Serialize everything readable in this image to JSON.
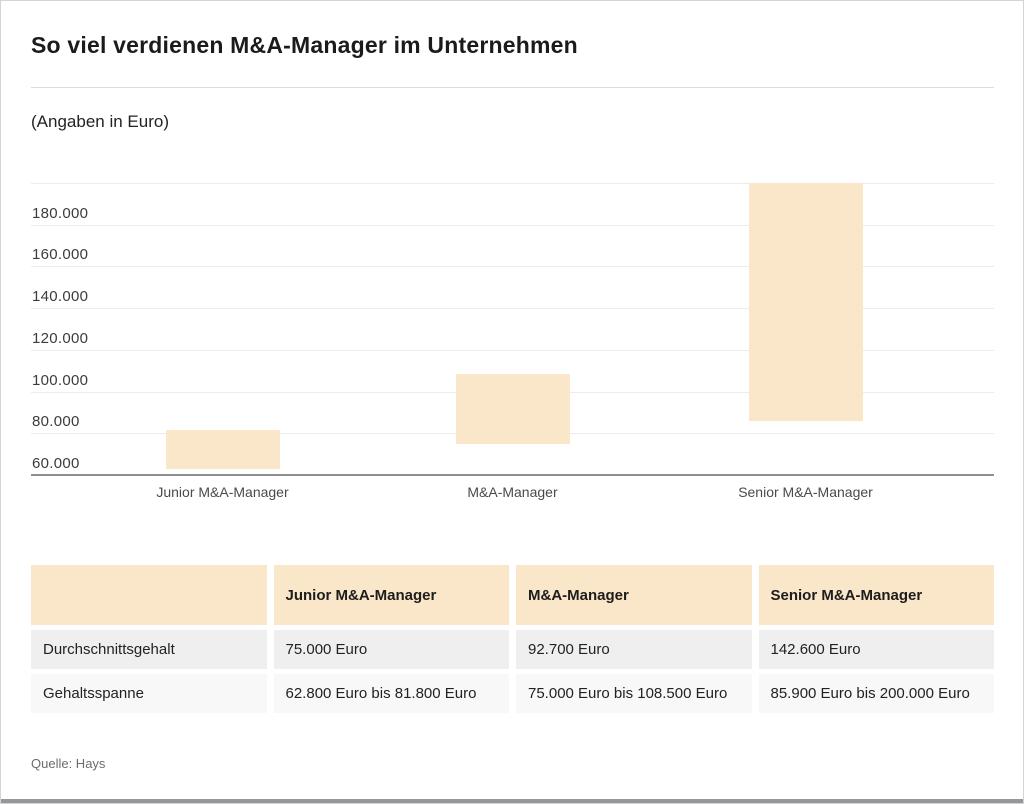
{
  "header": {
    "title": "So viel verdienen M&A-Manager im Unternehmen",
    "subtitle": "(Angaben in Euro)"
  },
  "chart_data": {
    "type": "bar",
    "subtype": "floating-range-columns",
    "title": "So viel verdienen M&A-Manager im Unternehmen",
    "xlabel": "",
    "ylabel": "Angaben in Euro",
    "categories": [
      "Junior M&A-Manager",
      "M&A-Manager",
      "Senior M&A-Manager"
    ],
    "series": [
      {
        "name": "Gehaltsspanne",
        "ranges": [
          {
            "low": 62800,
            "high": 81800
          },
          {
            "low": 75000,
            "high": 108500
          },
          {
            "low": 85900,
            "high": 200000
          }
        ]
      }
    ],
    "averages": [
      75000,
      92700,
      142600
    ],
    "ylim": [
      60000,
      200000
    ],
    "ytick_step": 20000,
    "ytick_labels": [
      "60.000",
      "80.000",
      "100.000",
      "120.000",
      "140.000",
      "160.000",
      "180.000"
    ],
    "grid": true,
    "legend": "none"
  },
  "table": {
    "header": [
      "",
      "Junior M&A-Manager",
      "M&A-Manager",
      "Senior M&A-Manager"
    ],
    "rows": [
      {
        "label": "Durchschnittsgehalt",
        "values": [
          "75.000 Euro",
          "92.700 Euro",
          "142.600 Euro"
        ]
      },
      {
        "label": "Gehaltsspanne",
        "values": [
          "62.800 Euro bis 81.800 Euro",
          "75.000 Euro bis 108.500 Euro",
          "85.900 Euro bis 200.000 Euro"
        ]
      }
    ]
  },
  "source": "Quelle: Hays",
  "colors": {
    "bar": "#fae6c8",
    "table_header_bg": "#fae6c8",
    "row1_bg": "#efefef",
    "row2_bg": "#f8f8f8",
    "axis_line": "#8f8f8f",
    "grid_line": "#ececec"
  }
}
